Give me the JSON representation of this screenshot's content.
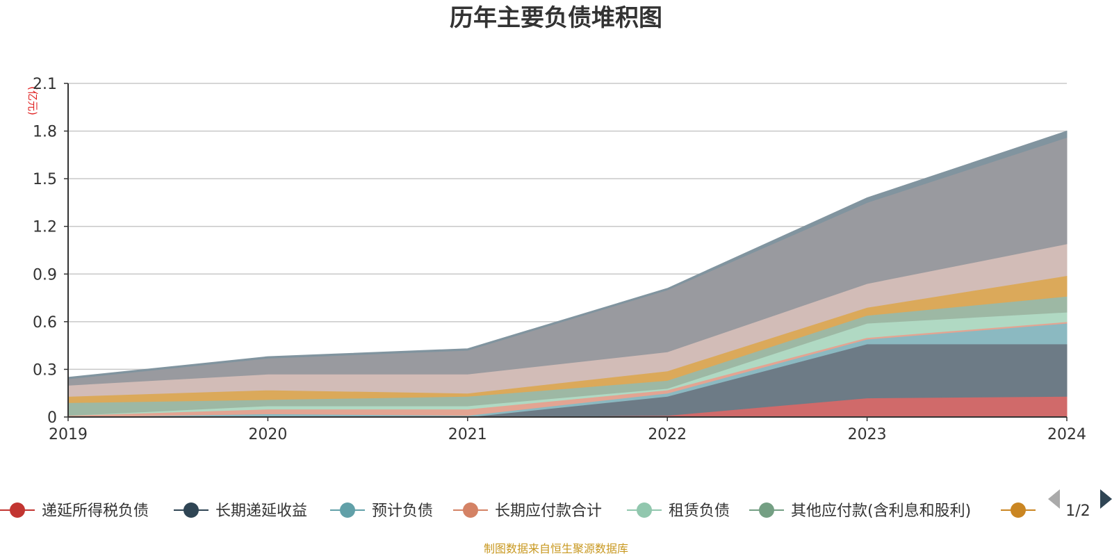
{
  "title": "历年主要负债堆积图",
  "unit_label": "(亿元)",
  "source_note": "制图数据来自恒生聚源数据库",
  "legend_pager": "1/2",
  "chart_data": {
    "type": "area",
    "stacked": true,
    "title": "历年主要负债堆积图",
    "ylabel": "(亿元)",
    "x": [
      "2019",
      "2020",
      "2021",
      "2022",
      "2023",
      "2024"
    ],
    "ylim": [
      0,
      2.1
    ],
    "yticks": [
      "0",
      "0.3",
      "0.6",
      "0.9",
      "1.2",
      "1.5",
      "1.8",
      "2.1"
    ],
    "grid": true,
    "legend_position": "bottom",
    "series": [
      {
        "name": "递延所得税负债",
        "color": "#d06a6a",
        "legend_color": "#c23531",
        "values": [
          0.0,
          0.0,
          0.0,
          0.01,
          0.12,
          0.13
        ]
      },
      {
        "name": "长期递延收益",
        "color": "#6d7b86",
        "legend_color": "#2f4554",
        "values": [
          0.0,
          0.0,
          0.0,
          0.12,
          0.34,
          0.33
        ]
      },
      {
        "name": "预计负债",
        "color": "#8bb9c1",
        "legend_color": "#61a0a8",
        "values": [
          0.0,
          0.02,
          0.01,
          0.02,
          0.03,
          0.13
        ]
      },
      {
        "name": "长期应付款合计",
        "color": "#e3a492",
        "legend_color": "#d48265",
        "values": [
          0.01,
          0.03,
          0.04,
          0.02,
          0.01,
          0.01
        ]
      },
      {
        "name": "租赁负债",
        "color": "#b0d9c3",
        "legend_color": "#91c7ae",
        "values": [
          0.0,
          0.02,
          0.02,
          0.01,
          0.09,
          0.06
        ]
      },
      {
        "name": "其他应付款(含利息和股利)",
        "color": "#9db8a4",
        "legend_color": "#749f83",
        "values": [
          0.08,
          0.04,
          0.06,
          0.05,
          0.05,
          0.1
        ]
      },
      {
        "name": "",
        "color": "#dba95a",
        "legend_color": "#ca8622",
        "values": [
          0.04,
          0.06,
          0.02,
          0.06,
          0.05,
          0.13
        ]
      },
      {
        "name": "",
        "color": "#d2bcb7",
        "legend_color": "#bda29a",
        "values": [
          0.07,
          0.1,
          0.12,
          0.12,
          0.15,
          0.2
        ]
      },
      {
        "name": "",
        "color": "#999a9f",
        "legend_color": "#6e7074",
        "values": [
          0.04,
          0.1,
          0.15,
          0.39,
          0.51,
          0.67
        ]
      },
      {
        "name": "",
        "color": "#81949f",
        "legend_color": "#546570",
        "values": [
          0.01,
          0.01,
          0.01,
          0.01,
          0.03,
          0.04
        ]
      }
    ]
  }
}
